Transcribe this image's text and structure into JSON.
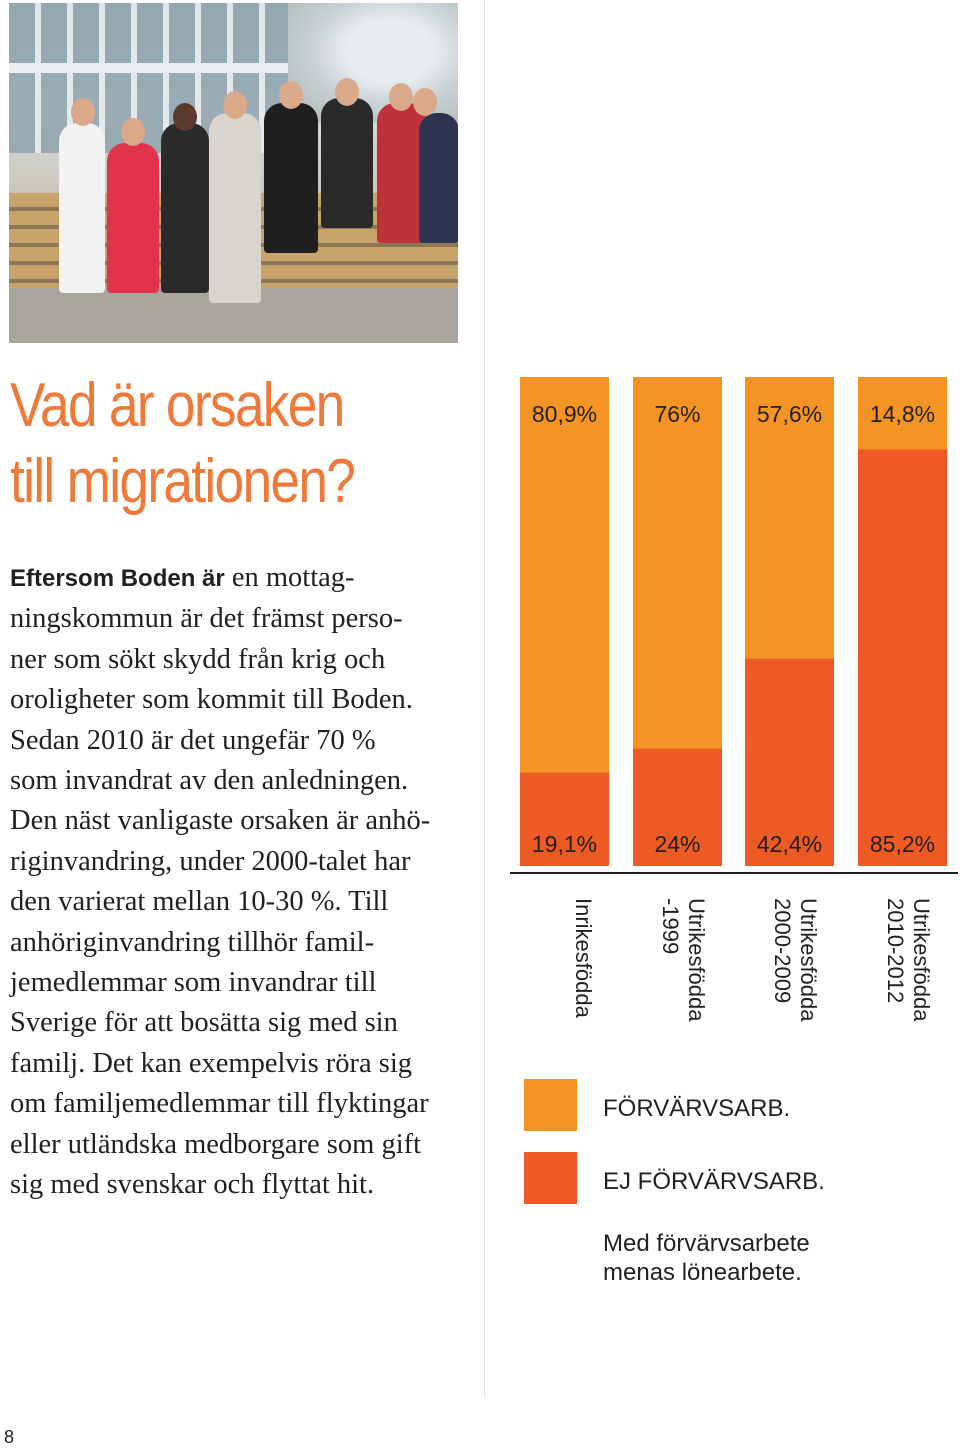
{
  "photo": {
    "alt": "Ungdomar som sitter och står vid en träbänk framför en skola"
  },
  "article": {
    "title_lines": [
      "Vad är orsaken",
      "till migrationen?"
    ],
    "lead": "Eftersom Boden är",
    "body_lines": [
      " en mottag-",
      "ningskommun är det främst perso-",
      "ner som sökt skydd från krig och",
      "oroligheter som kommit till Boden.",
      "Sedan 2010 är det ungefär 70 %",
      "som invandrat av den anledningen.",
      "Den näst vanligaste orsaken är anhö-",
      "riginvandring, under 2000-talet har",
      "den varierat mellan 10-30 %. Till",
      "anhöriginvandring tillhör famil-",
      "jemedlemmar som invandrar till",
      "Sverige för att bosätta sig med sin",
      "familj. Det kan exempelvis röra sig",
      "om familjemedlemmar till flyktingar",
      "eller utländska medborgare som gift",
      "sig med svenskar och flyttat hit."
    ]
  },
  "chart_data": {
    "type": "bar",
    "stacked": true,
    "categories": [
      [
        "Inrikesfödda"
      ],
      [
        "Utrikesfödda",
        "-1999"
      ],
      [
        "Utrikesfödda",
        "2000-2009"
      ],
      [
        "Utrikesfödda",
        "2010-2012"
      ]
    ],
    "series": [
      {
        "name": "FÖRVÄRVSARB.",
        "values": [
          80.9,
          76,
          57.6,
          14.8
        ],
        "labels": [
          "80,9%",
          "76%",
          "57,6%",
          "14,8%"
        ],
        "color": "#f39425"
      },
      {
        "name": "EJ FÖRVÄRVSARB.",
        "values": [
          19.1,
          24,
          42.4,
          85.2
        ],
        "labels": [
          "19,1%",
          "24%",
          "42,4%",
          "85,2%"
        ],
        "color": "#ee5a24"
      }
    ],
    "ylim": [
      0,
      100
    ],
    "legend": "bottom",
    "note_lines": [
      "Med förvärvsarbete",
      "menas lönearbete."
    ]
  },
  "page": {
    "number": "8"
  }
}
